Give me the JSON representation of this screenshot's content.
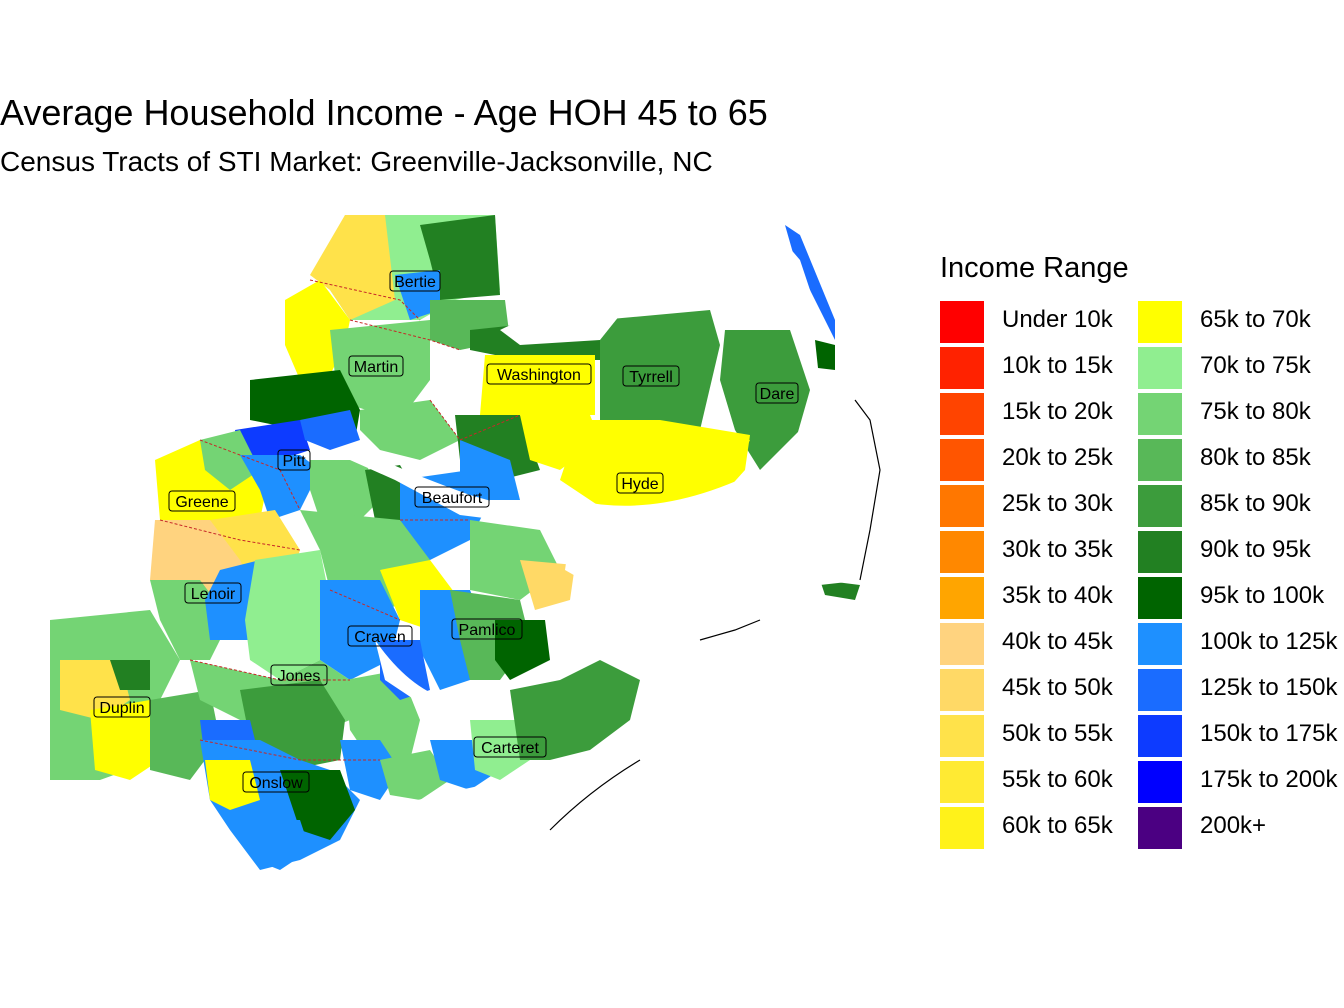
{
  "title": "Average Household Income - Age HOH 45 to 65",
  "subtitle": "Census Tracts of STI Market: Greenville-Jacksonville, NC",
  "legend": {
    "title": "Income Range",
    "items": [
      {
        "label": "Under 10k",
        "color": "#ff0000"
      },
      {
        "label": "10k to 15k",
        "color": "#ff2200"
      },
      {
        "label": "15k to 20k",
        "color": "#ff4400"
      },
      {
        "label": "20k to 25k",
        "color": "#ff5500"
      },
      {
        "label": "25k to 30k",
        "color": "#ff7700"
      },
      {
        "label": "30k to 35k",
        "color": "#ff8800"
      },
      {
        "label": "35k to 40k",
        "color": "#ffa500"
      },
      {
        "label": "40k to 45k",
        "color": "#ffd37f"
      },
      {
        "label": "45k to 50k",
        "color": "#ffd966"
      },
      {
        "label": "50k to 55k",
        "color": "#ffe24a"
      },
      {
        "label": "55k to 60k",
        "color": "#ffea33"
      },
      {
        "label": "60k to 65k",
        "color": "#fff21a"
      },
      {
        "label": "65k to 70k",
        "color": "#ffff00"
      },
      {
        "label": "70k to 75k",
        "color": "#90ee90"
      },
      {
        "label": "75k to 80k",
        "color": "#74d474"
      },
      {
        "label": "80k to 85k",
        "color": "#58b858"
      },
      {
        "label": "85k to 90k",
        "color": "#3c9c3c"
      },
      {
        "label": "90k to 95k",
        "color": "#228022"
      },
      {
        "label": "95k to 100k",
        "color": "#006400"
      },
      {
        "label": "100k to 125k",
        "color": "#1e90ff"
      },
      {
        "label": "125k to 150k",
        "color": "#1a6cff"
      },
      {
        "label": "150k to 175k",
        "color": "#0d3bff"
      },
      {
        "label": "175k to 200k",
        "color": "#0000ff"
      },
      {
        "label": "200k+",
        "color": "#4b0082"
      }
    ]
  },
  "counties": [
    {
      "name": "Bertie"
    },
    {
      "name": "Martin"
    },
    {
      "name": "Washington"
    },
    {
      "name": "Tyrrell"
    },
    {
      "name": "Dare"
    },
    {
      "name": "Pitt"
    },
    {
      "name": "Greene"
    },
    {
      "name": "Beaufort"
    },
    {
      "name": "Hyde"
    },
    {
      "name": "Lenoir"
    },
    {
      "name": "Craven"
    },
    {
      "name": "Pamlico"
    },
    {
      "name": "Jones"
    },
    {
      "name": "Duplin"
    },
    {
      "name": "Carteret"
    },
    {
      "name": "Onslow"
    }
  ]
}
